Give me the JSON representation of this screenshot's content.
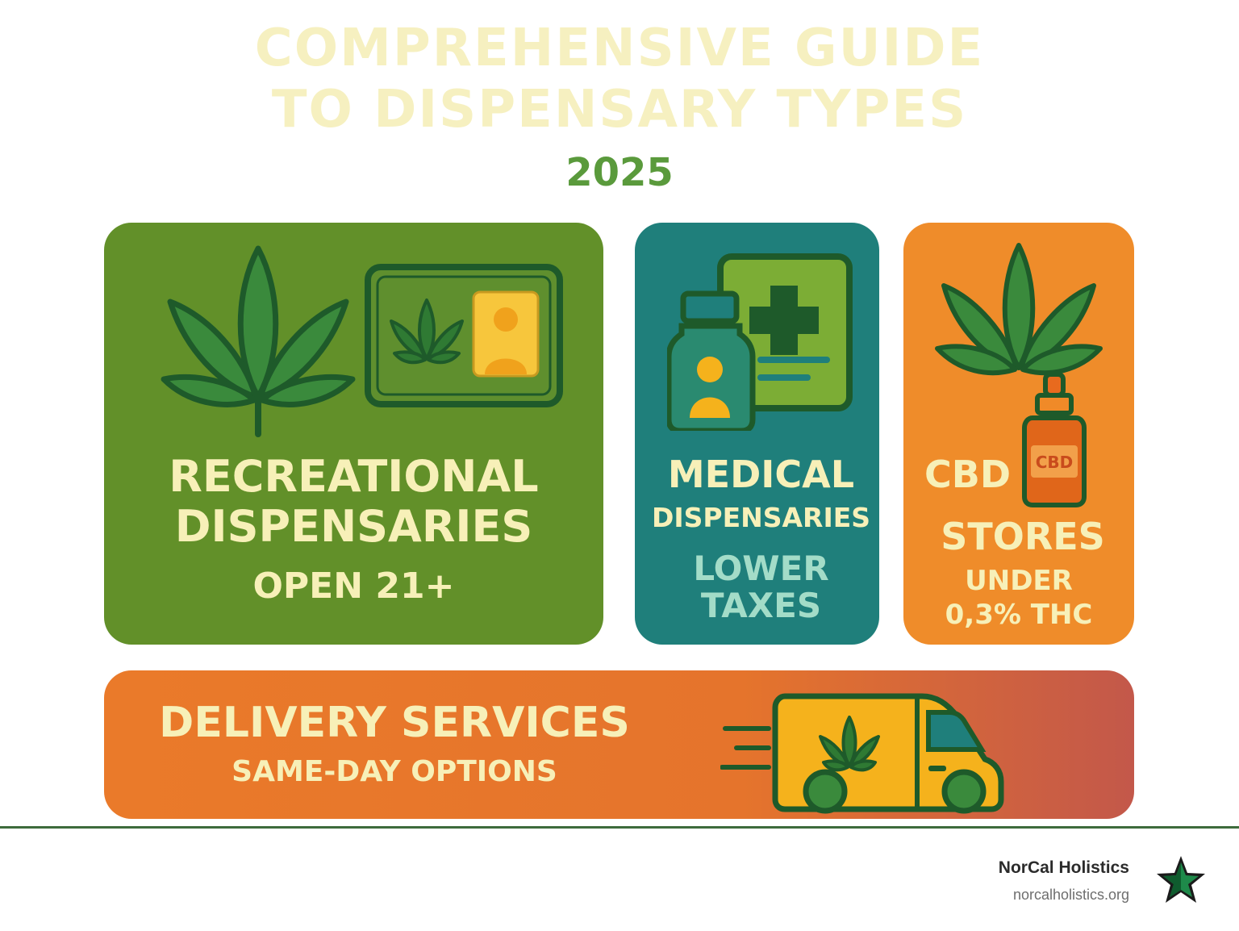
{
  "header": {
    "title_line1": "COMPREHENSIVE GUIDE",
    "title_line2": "TO DISPENSARY TYPES",
    "year": "2025"
  },
  "cards": {
    "recreational": {
      "line1": "RECREATIONAL",
      "line2": "DISPENSARIES",
      "detail": "OPEN 21+",
      "icons": [
        "cannabis-leaf-icon",
        "id-card-icon"
      ],
      "color": "#629029"
    },
    "medical": {
      "line1": "MEDICAL",
      "line2": "DISPENSARIES",
      "detail_line1": "LOWER",
      "detail_line2": "TAXES",
      "icons": [
        "medicine-bottle-icon",
        "medical-card-icon"
      ],
      "color": "#1f7f7b"
    },
    "cbd": {
      "line1": "CBD",
      "line2": "STORES",
      "detail_line1": "UNDER",
      "detail_line2": "0,3% THC",
      "bottle_label": "CBD",
      "icons": [
        "cannabis-leaf-icon",
        "dropper-bottle-icon"
      ],
      "color": "#ef8c2a"
    },
    "delivery": {
      "line1": "DELIVERY SERVICES",
      "detail": "SAME-DAY OPTIONS",
      "icons": [
        "delivery-van-icon"
      ],
      "color": "#e5742c"
    }
  },
  "footer": {
    "brand_name": "NorCal Holistics",
    "brand_url": "norcalholistics.org",
    "logo_icon": "star-logo-icon"
  },
  "colors": {
    "cream_text": "#f7f0b8",
    "dark_green_outline": "#1e5a2a",
    "title_color": "#f6f0c0",
    "year_color": "#5a9a3c"
  }
}
